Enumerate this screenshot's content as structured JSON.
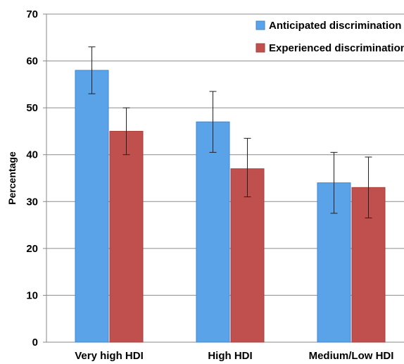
{
  "chart_data": {
    "type": "bar",
    "title": "",
    "xlabel": "",
    "ylabel": "Percentage",
    "ylim": [
      0,
      70
    ],
    "yticks": [
      0,
      10,
      20,
      30,
      40,
      50,
      60,
      70
    ],
    "grid": true,
    "legend_position": "top-right",
    "categories": [
      "Very high HDI",
      "High HDI",
      "Medium/Low HDI"
    ],
    "series": [
      {
        "name": "Anticipated discrimination",
        "color": "#5ba3e8",
        "values": [
          58,
          47,
          34
        ],
        "error_low": [
          53,
          40.5,
          27.5
        ],
        "error_high": [
          63,
          53.5,
          40.5
        ]
      },
      {
        "name": "Experienced discrimination",
        "color": "#c0504d",
        "values": [
          45,
          37,
          33
        ],
        "error_low": [
          40,
          31,
          26.5
        ],
        "error_high": [
          50,
          43.5,
          39.5
        ]
      }
    ]
  }
}
